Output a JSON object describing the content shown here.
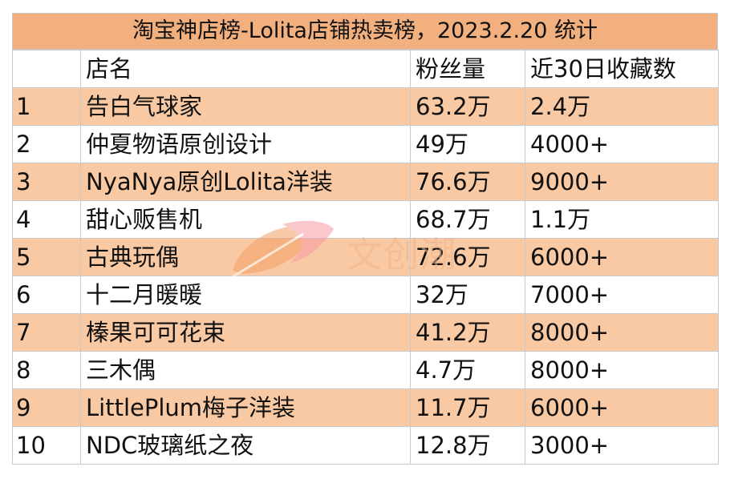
{
  "title": "淘宝神店榜-Lolita店铺热卖榜，2023.2.20 统计",
  "headers": [
    "",
    "店名",
    "粉丝量",
    "近30日收藏数"
  ],
  "rows": [
    [
      "1",
      "告白气球家",
      "63.2万",
      "2.4万"
    ],
    [
      "2",
      "仲夏物语原创设计",
      "49万",
      "4000+"
    ],
    [
      "3",
      "NyaNya原创Lolita洋装",
      "76.6万",
      "9000+"
    ],
    [
      "4",
      "甜心贩售机",
      "68.7万",
      "1.1万"
    ],
    [
      "5",
      "古典玩偶",
      "72.6万",
      "6000+"
    ],
    [
      "6",
      "十二月暖暖",
      "32万",
      "7000+"
    ],
    [
      "7",
      "榛果可可花束",
      "41.2万",
      "8000+"
    ],
    [
      "8",
      "三木偶",
      "4.7万",
      "8000+"
    ],
    [
      "9",
      "LittlePlum梅子洋装",
      "11.7万",
      "6000+"
    ],
    [
      "10",
      "NDC玻璃纸之夜",
      "12.8万",
      "3000+"
    ]
  ],
  "watermark": {
    "text": "文创潮",
    "icon": "leaf-logo-icon",
    "colors": {
      "orange": "#f3a066",
      "pink": "#f79aa6"
    }
  },
  "colors": {
    "title_bg": "#f3b07f",
    "alt_row_bg": "#f8c9a2",
    "border": "#c9c9c9"
  }
}
